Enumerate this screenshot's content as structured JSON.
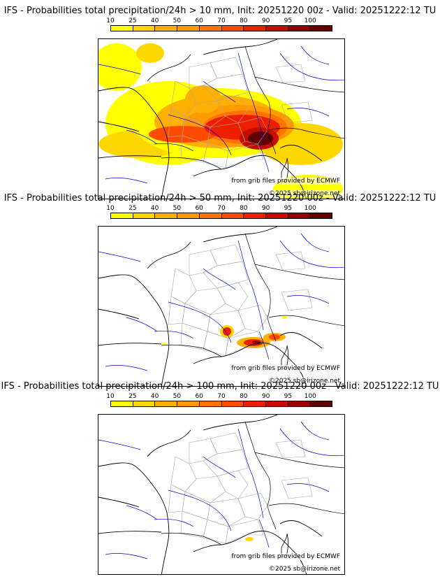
{
  "panels": [
    {
      "title": "IFS - Probabilities total precipitation/24h > 10 mm, Init: 20251220 00z - Valid: 20251222:12 TU",
      "threshold_mm": 10
    },
    {
      "title": "IFS - Probabilities total precipitation/24h > 50 mm, Init: 20251220 00z - Valid: 20251222:12 TU",
      "threshold_mm": 50
    },
    {
      "title": "IFS - Probabilities total precipitation/24h > 100 mm, Init: 20251220 00z - Valid: 20251222:12 TU",
      "threshold_mm": 100
    }
  ],
  "colorbar": {
    "ticks": [
      "10",
      "25",
      "40",
      "50",
      "60",
      "70",
      "80",
      "90",
      "95",
      "100"
    ],
    "colors": [
      "#ffff00",
      "#ffd700",
      "#ffb000",
      "#ff9a00",
      "#ff7400",
      "#ff4a00",
      "#ee1f00",
      "#c60c00",
      "#960000",
      "#600000"
    ]
  },
  "credits": {
    "source": "from grib files provided by ECMWF",
    "copyright": "©2025 sb@irizone.net"
  },
  "map": {
    "region": "France and surrounding Western Europe",
    "colors": {
      "coast": "#000000",
      "border": "#000000",
      "admin": "#a9a9a9",
      "river": "#0000dd"
    }
  }
}
